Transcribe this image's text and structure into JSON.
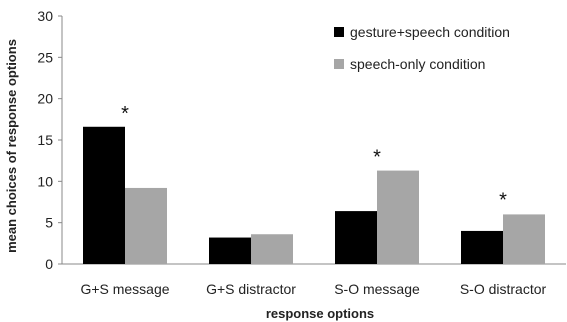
{
  "chart_data": {
    "type": "bar",
    "categories": [
      "G+S message",
      "G+S distractor",
      "S-O message",
      "S-O distractor"
    ],
    "series": [
      {
        "name": "gesture+speech condition",
        "values": [
          16.6,
          3.2,
          6.4,
          4.0
        ],
        "color": "#000000"
      },
      {
        "name": "speech-only condition",
        "values": [
          9.2,
          3.6,
          11.3,
          6.0
        ],
        "color": "#a6a6a6"
      }
    ],
    "significance": [
      {
        "category_index": 0,
        "label": "*",
        "at_value": 18.9
      },
      {
        "category_index": 2,
        "label": "*",
        "at_value": 13.6
      },
      {
        "category_index": 3,
        "label": "*",
        "at_value": 8.4
      }
    ],
    "xlabel": "response options",
    "ylabel": "mean choices of response options",
    "ylim": [
      0,
      30
    ],
    "yticks": [
      0,
      5,
      10,
      15,
      20,
      25,
      30
    ],
    "grid": false,
    "legend": "top-right"
  }
}
